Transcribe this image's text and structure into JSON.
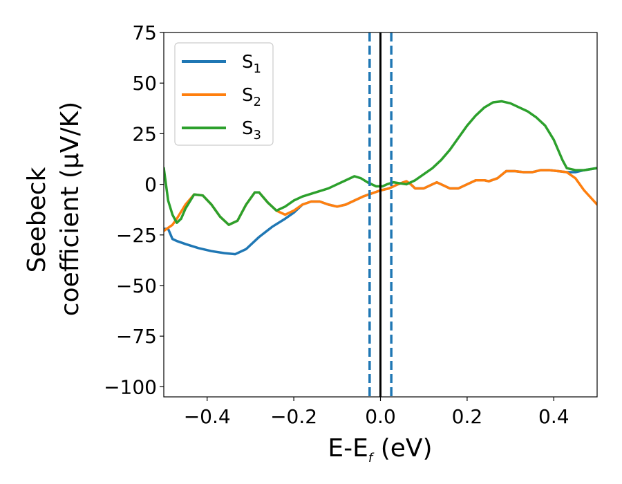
{
  "chart_data": {
    "type": "line",
    "title": "",
    "xlabel_main": "E-E",
    "xlabel_sub": "f",
    "xlabel_unit": " (eV)",
    "ylabel_line1": "Seebeck",
    "ylabel_line2": "coefficient  (μV/K)",
    "xlim": [
      -0.5,
      0.5
    ],
    "ylim": [
      -105,
      75
    ],
    "xticks": [
      -0.4,
      -0.2,
      0.0,
      0.2,
      0.4
    ],
    "xtick_labels": [
      "−0.4",
      "−0.2",
      "0.0",
      "0.2",
      "0.4"
    ],
    "yticks": [
      75,
      50,
      25,
      0,
      -25,
      -50,
      -75,
      -100
    ],
    "ytick_labels": [
      "75",
      "50",
      "25",
      "0",
      "−25",
      "−50",
      "−75",
      "−100"
    ],
    "legend_position": "top-left",
    "vertical_lines": [
      {
        "x": -0.025,
        "style": "dashed",
        "color": "#1f77b4"
      },
      {
        "x": 0.0,
        "style": "solid",
        "color": "#000000"
      },
      {
        "x": 0.025,
        "style": "dashed",
        "color": "#1f77b4"
      }
    ],
    "series": [
      {
        "name": "S",
        "sub": "1",
        "color": "#1f77b4",
        "points": [
          [
            -0.5,
            -22
          ],
          [
            -0.49,
            -22
          ],
          [
            -0.48,
            -27
          ],
          [
            -0.47,
            -28
          ],
          [
            -0.45,
            -29.5
          ],
          [
            -0.42,
            -31.5
          ],
          [
            -0.39,
            -33
          ],
          [
            -0.36,
            -34
          ],
          [
            -0.335,
            -34.5
          ],
          [
            -0.31,
            -32
          ],
          [
            -0.28,
            -26
          ],
          [
            -0.25,
            -21
          ],
          [
            -0.22,
            -17
          ],
          [
            -0.2,
            -14
          ],
          [
            -0.18,
            -10
          ],
          [
            -0.16,
            -8.5
          ],
          [
            -0.14,
            -8.5
          ],
          [
            -0.12,
            -10
          ],
          [
            -0.1,
            -11
          ],
          [
            -0.08,
            -10
          ],
          [
            -0.06,
            -8
          ],
          [
            -0.04,
            -6
          ],
          [
            -0.02,
            -4.5
          ],
          [
            0.0,
            -3
          ],
          [
            0.02,
            -2
          ],
          [
            0.04,
            0
          ],
          [
            0.06,
            1.5
          ],
          [
            0.07,
            0
          ],
          [
            0.08,
            -2
          ],
          [
            0.1,
            -2
          ],
          [
            0.12,
            0
          ],
          [
            0.13,
            1
          ],
          [
            0.14,
            0
          ],
          [
            0.16,
            -2
          ],
          [
            0.18,
            -2
          ],
          [
            0.2,
            0
          ],
          [
            0.22,
            2
          ],
          [
            0.24,
            2
          ],
          [
            0.25,
            1.5
          ],
          [
            0.27,
            3
          ],
          [
            0.29,
            6.5
          ],
          [
            0.31,
            6.5
          ],
          [
            0.33,
            6
          ],
          [
            0.35,
            6
          ],
          [
            0.37,
            7
          ],
          [
            0.39,
            7
          ],
          [
            0.41,
            6.5
          ],
          [
            0.43,
            6
          ],
          [
            0.45,
            6
          ],
          [
            0.47,
            7
          ],
          [
            0.5,
            8
          ]
        ]
      },
      {
        "name": "S",
        "sub": "2",
        "color": "#ff7f0e",
        "points": [
          [
            -0.5,
            -23
          ],
          [
            -0.48,
            -20
          ],
          [
            -0.47,
            -17
          ],
          [
            -0.45,
            -10
          ],
          [
            -0.43,
            -5
          ],
          [
            -0.41,
            -5.5
          ],
          [
            -0.39,
            -10
          ],
          [
            -0.37,
            -16
          ],
          [
            -0.35,
            -20
          ],
          [
            -0.33,
            -18
          ],
          [
            -0.31,
            -10
          ],
          [
            -0.29,
            -4
          ],
          [
            -0.28,
            -4
          ],
          [
            -0.26,
            -9
          ],
          [
            -0.24,
            -13
          ],
          [
            -0.22,
            -15
          ],
          [
            -0.2,
            -13
          ],
          [
            -0.18,
            -10
          ],
          [
            -0.16,
            -8.5
          ],
          [
            -0.14,
            -8.5
          ],
          [
            -0.12,
            -10
          ],
          [
            -0.1,
            -11
          ],
          [
            -0.08,
            -10
          ],
          [
            -0.06,
            -8
          ],
          [
            -0.04,
            -6
          ],
          [
            -0.02,
            -4.5
          ],
          [
            0.0,
            -3
          ],
          [
            0.02,
            -2
          ],
          [
            0.04,
            0
          ],
          [
            0.06,
            1.5
          ],
          [
            0.07,
            0
          ],
          [
            0.08,
            -2
          ],
          [
            0.1,
            -2
          ],
          [
            0.12,
            0
          ],
          [
            0.13,
            1
          ],
          [
            0.14,
            0
          ],
          [
            0.16,
            -2
          ],
          [
            0.18,
            -2
          ],
          [
            0.2,
            0
          ],
          [
            0.22,
            2
          ],
          [
            0.24,
            2
          ],
          [
            0.25,
            1.5
          ],
          [
            0.27,
            3
          ],
          [
            0.29,
            6.5
          ],
          [
            0.31,
            6.5
          ],
          [
            0.33,
            6
          ],
          [
            0.35,
            6
          ],
          [
            0.37,
            7
          ],
          [
            0.39,
            7
          ],
          [
            0.41,
            6.5
          ],
          [
            0.43,
            6
          ],
          [
            0.45,
            3
          ],
          [
            0.47,
            -3
          ],
          [
            0.5,
            -10
          ]
        ]
      },
      {
        "name": "S",
        "sub": "3",
        "color": "#2ca02c",
        "points": [
          [
            -0.5,
            8
          ],
          [
            -0.495,
            0
          ],
          [
            -0.49,
            -8
          ],
          [
            -0.48,
            -15
          ],
          [
            -0.47,
            -19
          ],
          [
            -0.46,
            -17
          ],
          [
            -0.45,
            -12
          ],
          [
            -0.43,
            -5
          ],
          [
            -0.41,
            -5.5
          ],
          [
            -0.39,
            -10
          ],
          [
            -0.37,
            -16
          ],
          [
            -0.35,
            -20
          ],
          [
            -0.33,
            -18
          ],
          [
            -0.31,
            -10
          ],
          [
            -0.29,
            -4
          ],
          [
            -0.28,
            -4
          ],
          [
            -0.26,
            -9
          ],
          [
            -0.24,
            -13
          ],
          [
            -0.22,
            -11
          ],
          [
            -0.2,
            -8
          ],
          [
            -0.18,
            -6
          ],
          [
            -0.15,
            -4
          ],
          [
            -0.12,
            -2
          ],
          [
            -0.1,
            0
          ],
          [
            -0.08,
            2
          ],
          [
            -0.06,
            4
          ],
          [
            -0.045,
            3
          ],
          [
            -0.03,
            1
          ],
          [
            -0.01,
            -1
          ],
          [
            0.005,
            -1
          ],
          [
            0.015,
            0
          ],
          [
            0.03,
            1
          ],
          [
            0.045,
            0.5
          ],
          [
            0.06,
            0
          ],
          [
            0.08,
            2
          ],
          [
            0.1,
            5
          ],
          [
            0.12,
            8
          ],
          [
            0.14,
            12
          ],
          [
            0.16,
            17
          ],
          [
            0.18,
            23
          ],
          [
            0.2,
            29
          ],
          [
            0.22,
            34
          ],
          [
            0.24,
            38
          ],
          [
            0.26,
            40.5
          ],
          [
            0.28,
            41
          ],
          [
            0.3,
            40
          ],
          [
            0.32,
            38
          ],
          [
            0.34,
            36
          ],
          [
            0.36,
            33
          ],
          [
            0.38,
            29
          ],
          [
            0.4,
            22
          ],
          [
            0.42,
            12
          ],
          [
            0.43,
            8
          ],
          [
            0.45,
            7
          ],
          [
            0.47,
            7
          ],
          [
            0.5,
            8
          ]
        ]
      }
    ]
  }
}
